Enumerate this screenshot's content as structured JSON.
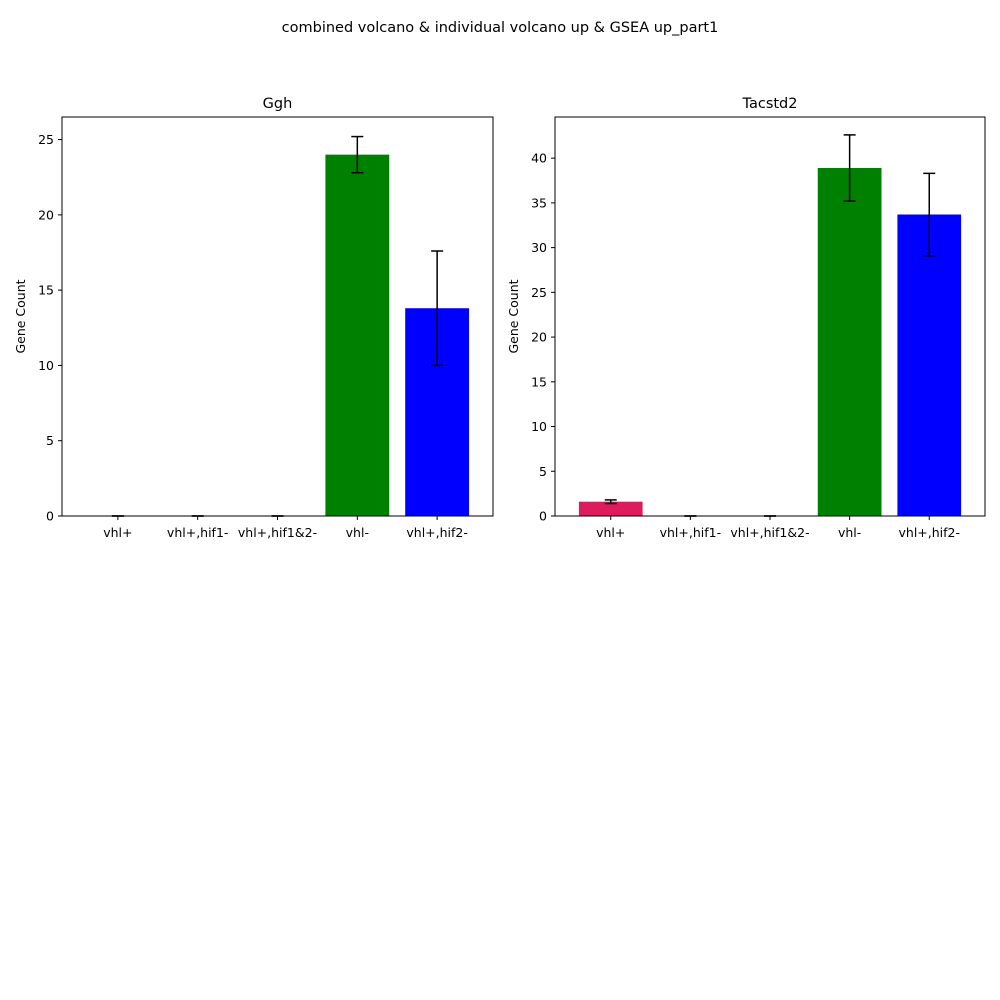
{
  "figure": {
    "suptitle": "combined volcano & individual volcano up & GSEA up_part1"
  },
  "chart_data": [
    {
      "type": "bar",
      "title": "Ggh",
      "xlabel": "",
      "ylabel": "Gene Count",
      "categories": [
        "vhl+",
        "vhl+,hif1-",
        "vhl+,hif1&2-",
        "vhl-",
        "vhl+,hif2-"
      ],
      "values": [
        0,
        0,
        0,
        24.0,
        13.8
      ],
      "errors": [
        0,
        0,
        0,
        1.2,
        3.8
      ],
      "colors": [
        "#dc1c5c",
        "#dc1c5c",
        "#dc1c5c",
        "#008000",
        "#0000ff"
      ],
      "ylim": [
        0,
        26.5
      ],
      "yticks": [
        0,
        5,
        10,
        15,
        20,
        25
      ],
      "grid": false
    },
    {
      "type": "bar",
      "title": "Tacstd2",
      "xlabel": "",
      "ylabel": "Gene Count",
      "categories": [
        "vhl+",
        "vhl+,hif1-",
        "vhl+,hif1&2-",
        "vhl-",
        "vhl+,hif2-"
      ],
      "values": [
        1.6,
        0,
        0,
        38.9,
        33.7
      ],
      "errors": [
        0.2,
        0,
        0,
        3.7,
        4.6
      ],
      "colors": [
        "#dc1c5c",
        "#dc1c5c",
        "#dc1c5c",
        "#008000",
        "#0000ff"
      ],
      "ylim": [
        0,
        44.6
      ],
      "yticks": [
        0,
        5,
        10,
        15,
        20,
        25,
        30,
        35,
        40
      ],
      "grid": false
    }
  ]
}
